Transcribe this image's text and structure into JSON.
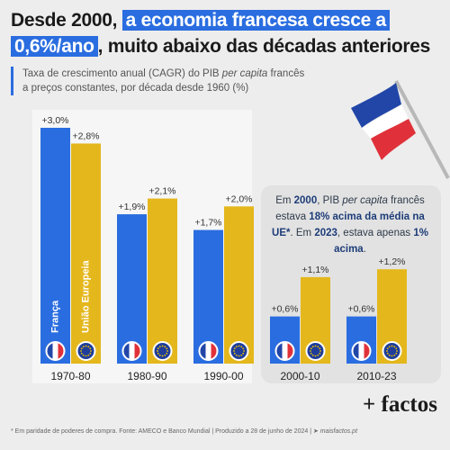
{
  "title": {
    "part1": "Desde 2000, ",
    "highlight1": "a economia francesa cresce a",
    "highlight2": "0,6%/ano",
    "part2": ", muito abaixo das décadas anteriores"
  },
  "subtitle": {
    "line1_a": "Taxa de crescimento anual (CAGR) do PIB ",
    "line1_italic": "per capita",
    "line1_b": " francês",
    "line2": "a preços constantes, por década desde 1960 (%)"
  },
  "callout": {
    "s1": "Em ",
    "b1": "2000",
    "s2": ", PIB ",
    "i1": "per capita",
    "s3": " francês estava ",
    "b2": "18% acima da média na UE*",
    "s4": ". Em ",
    "b3": "2023",
    "s5": ", estava apenas ",
    "b4": "1% acima",
    "s6": "."
  },
  "footnote": {
    "text": "* Em paridade de poderes de compra. Fonte: AMECO e Banco Mundial | Produzido a 28 de junho de 2024 | ",
    "site": "➤ maisfactos.pt"
  },
  "brand": "+ factos",
  "colors": {
    "france": "#2a6de0",
    "eu": "#e4b71c",
    "accent": "#2a6de0"
  },
  "chart_data": {
    "type": "bar",
    "categories": [
      "1970-80",
      "1980-90",
      "1990-00",
      "2000-10",
      "2010-23"
    ],
    "series": [
      {
        "name": "França",
        "values": [
          3.0,
          1.9,
          1.7,
          0.6,
          0.6
        ],
        "labels": [
          "+3,0%",
          "+1,9%",
          "+1,7%",
          "+0,6%",
          "+0,6%"
        ],
        "color": "#2a6de0",
        "icon": "france-flag-icon"
      },
      {
        "name": "União Europeia",
        "values": [
          2.8,
          2.1,
          2.0,
          1.1,
          1.2
        ],
        "labels": [
          "+2,8%",
          "+2,1%",
          "+2,0%",
          "+1,1%",
          "+1,2%"
        ],
        "color": "#e4b71c",
        "icon": "eu-flag-icon"
      }
    ],
    "ylim": [
      0,
      3.0
    ],
    "grid": false,
    "legend": "none"
  }
}
